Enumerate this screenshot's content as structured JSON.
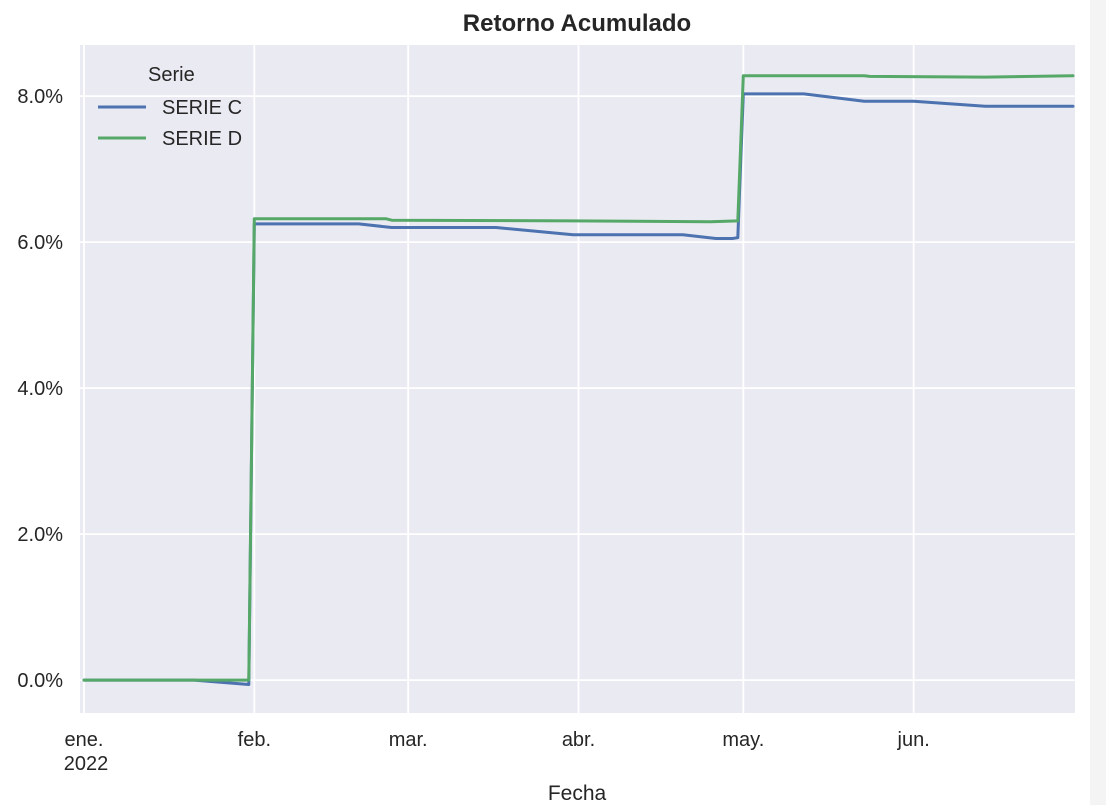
{
  "chart_data": {
    "type": "line",
    "title": "Retorno Acumulado",
    "xlabel": "Fecha",
    "ylabel": "",
    "x_tick_labels": [
      {
        "date": "2022-01-01",
        "label": "ene.",
        "sublabel": "2022"
      },
      {
        "date": "2022-02-01",
        "label": "feb."
      },
      {
        "date": "2022-03-01",
        "label": "mar."
      },
      {
        "date": "2022-04-01",
        "label": "abr."
      },
      {
        "date": "2022-05-01",
        "label": "may."
      },
      {
        "date": "2022-06-01",
        "label": "jun."
      }
    ],
    "y_ticks": [
      0.0,
      2.0,
      4.0,
      6.0,
      8.0
    ],
    "y_tick_labels": [
      "0.0%",
      "2.0%",
      "4.0%",
      "6.0%",
      "8.0%"
    ],
    "xlim": [
      "2022-01-01",
      "2022-06-30"
    ],
    "ylim": [
      -0.45,
      8.7
    ],
    "grid": true,
    "legend": {
      "title": "Serie",
      "placement": "top-left"
    },
    "series": [
      {
        "name": "SERIE C",
        "color": "#4c72b0",
        "points": [
          [
            "2022-01-01",
            0.0
          ],
          [
            "2022-01-21",
            0.0
          ],
          [
            "2022-01-31",
            -0.06
          ],
          [
            "2022-02-01",
            6.25
          ],
          [
            "2022-02-20",
            6.25
          ],
          [
            "2022-02-26",
            6.2
          ],
          [
            "2022-03-17",
            6.2
          ],
          [
            "2022-03-31",
            6.1
          ],
          [
            "2022-04-20",
            6.1
          ],
          [
            "2022-04-26",
            6.05
          ],
          [
            "2022-04-29",
            6.05
          ],
          [
            "2022-04-30",
            6.06
          ],
          [
            "2022-05-01",
            8.03
          ],
          [
            "2022-05-12",
            8.03
          ],
          [
            "2022-05-23",
            7.93
          ],
          [
            "2022-06-01",
            7.93
          ],
          [
            "2022-06-14",
            7.86
          ],
          [
            "2022-06-30",
            7.86
          ]
        ]
      },
      {
        "name": "SERIE D",
        "color": "#55a868",
        "points": [
          [
            "2022-01-01",
            0.0
          ],
          [
            "2022-01-31",
            0.0
          ],
          [
            "2022-02-01",
            6.32
          ],
          [
            "2022-02-25",
            6.32
          ],
          [
            "2022-02-26",
            6.3
          ],
          [
            "2022-03-31",
            6.29
          ],
          [
            "2022-04-25",
            6.28
          ],
          [
            "2022-04-30",
            6.29
          ],
          [
            "2022-05-01",
            8.28
          ],
          [
            "2022-05-23",
            8.28
          ],
          [
            "2022-05-24",
            8.27
          ],
          [
            "2022-06-14",
            8.26
          ],
          [
            "2022-06-30",
            8.28
          ]
        ]
      }
    ]
  }
}
